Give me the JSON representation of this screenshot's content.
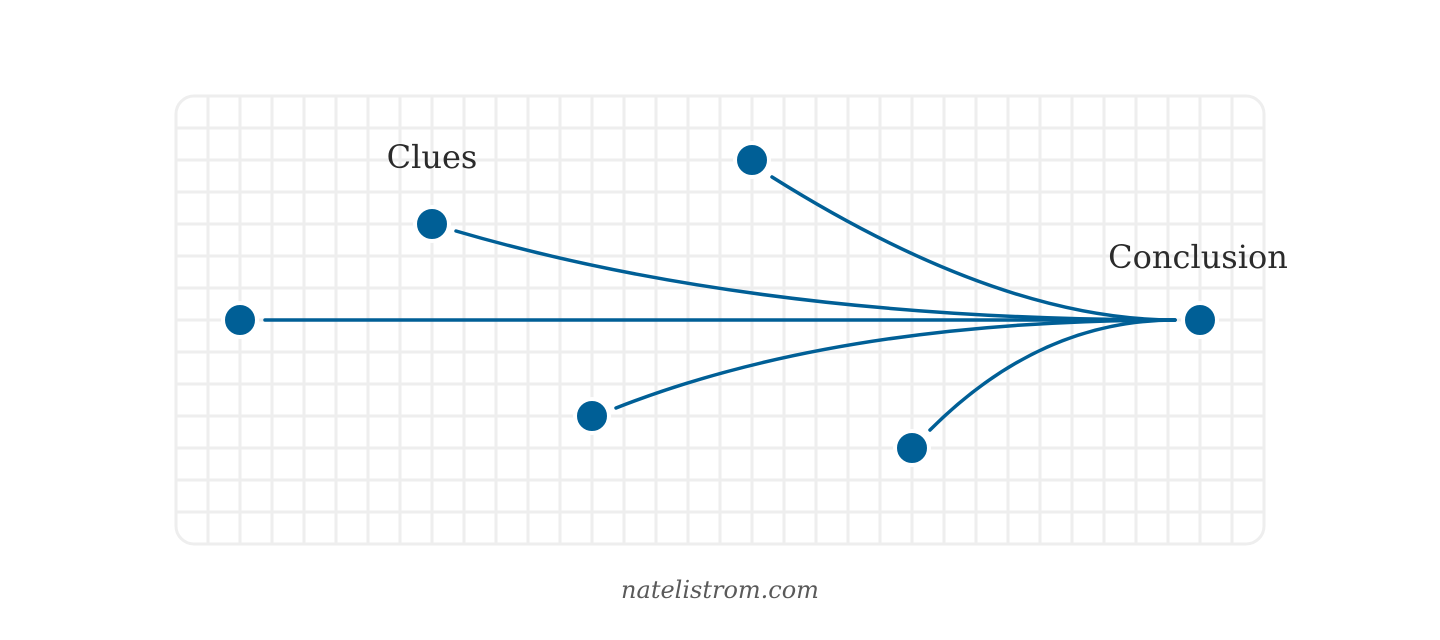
{
  "labels": {
    "clues": "Clues",
    "conclusion": "Conclusion"
  },
  "footer": {
    "credit": "natelistrom.com"
  },
  "colors": {
    "accent": "#005f96",
    "grid": "#eeeeee",
    "text": "#2b2b2b",
    "credit": "#5a5a5a"
  },
  "diagram": {
    "conclusion_node": "conclusion",
    "clue_nodes": [
      "clue-1",
      "clue-2",
      "clue-3",
      "clue-4",
      "clue-5"
    ]
  }
}
